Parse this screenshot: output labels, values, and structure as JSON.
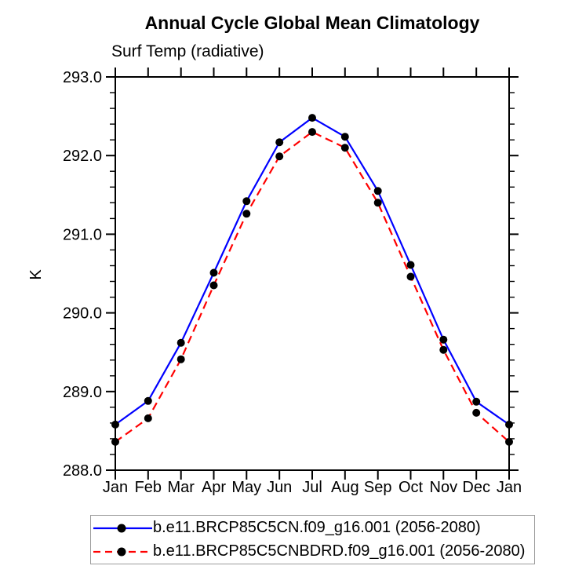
{
  "chart_data": {
    "type": "line",
    "title": "Annual Cycle Global Mean Climatology",
    "subtitle": "Surf Temp (radiative)",
    "ylabel": "K",
    "categories": [
      "Jan",
      "Feb",
      "Mar",
      "Apr",
      "May",
      "Jun",
      "Jul",
      "Aug",
      "Sep",
      "Oct",
      "Nov",
      "Dec",
      "Jan"
    ],
    "ylim": [
      288.0,
      293.0
    ],
    "ytick_labels": [
      "288.0",
      "289.0",
      "290.0",
      "291.0",
      "292.0",
      "293.0"
    ],
    "ytick_minor_step": 0.2,
    "grid": false,
    "legend_position": "bottom",
    "axis_color": "#000000",
    "marker_color": "#000000",
    "series": [
      {
        "name": "b.e11.BRCP85C5CN.f09_g16.001 (2056-2080)",
        "color": "#0000ff",
        "style": "solid",
        "marker": "filled-circle",
        "values": [
          288.58,
          288.88,
          289.62,
          290.51,
          291.42,
          292.17,
          292.48,
          292.24,
          291.55,
          290.61,
          289.66,
          288.87,
          288.58
        ]
      },
      {
        "name": "b.e11.BRCP85C5CNBDRD.f09_g16.001 (2056-2080)",
        "color": "#ff0000",
        "style": "dashed",
        "marker": "filled-circle",
        "values": [
          288.36,
          288.66,
          289.41,
          290.35,
          291.26,
          291.99,
          292.3,
          292.1,
          291.4,
          290.46,
          289.53,
          288.73,
          288.36
        ]
      }
    ]
  }
}
